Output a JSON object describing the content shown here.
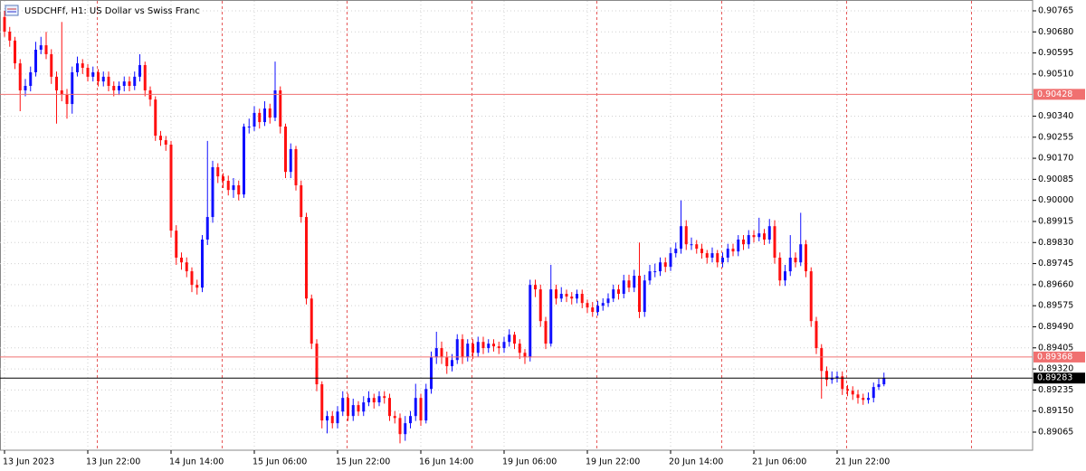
{
  "chart_data": {
    "type": "candlestick",
    "title": "USDCHFf, H1: US Dollar vs Swiss Franc",
    "categories": [
      "13 Jun 2023",
      null,
      null,
      null,
      null,
      null,
      null,
      null,
      null,
      null,
      null,
      null,
      null,
      null,
      null,
      null,
      "13 Jun 22:00",
      null,
      null,
      null,
      null,
      null,
      null,
      null,
      null,
      null,
      null,
      null,
      null,
      null,
      null,
      null,
      "14 Jun 14:00",
      null,
      null,
      null,
      null,
      null,
      null,
      null,
      null,
      null,
      null,
      null,
      null,
      null,
      null,
      null,
      "15 Jun 06:00",
      null,
      null,
      null,
      null,
      null,
      null,
      null,
      null,
      null,
      null,
      null,
      null,
      null,
      null,
      null,
      "15 Jun 22:00",
      null,
      null,
      null,
      null,
      null,
      null,
      null,
      null,
      null,
      null,
      null,
      null,
      null,
      null,
      null,
      "16 Jun 14:00",
      null,
      null,
      null,
      null,
      null,
      null,
      null,
      null,
      null,
      null,
      null,
      null,
      null,
      null,
      null,
      "19 Jun 06:00",
      null,
      null,
      null,
      null,
      null,
      null,
      null,
      null,
      null,
      null,
      null,
      null,
      null,
      null,
      null,
      "19 Jun 22:00",
      null,
      null,
      null,
      null,
      null,
      null,
      null,
      null,
      null,
      null,
      null,
      null,
      null,
      null,
      null,
      "20 Jun 14:00",
      null,
      null,
      null,
      null,
      null,
      null,
      null,
      null,
      null,
      null,
      null,
      null,
      null,
      null,
      null,
      "21 Jun 06:00",
      null,
      null,
      null,
      null,
      null,
      null,
      null,
      null,
      null,
      null,
      null,
      null,
      null,
      null,
      null,
      "21 Jun 22:00",
      null,
      null,
      null,
      null,
      null,
      null,
      null,
      null,
      null
    ],
    "open": [
      0.9074,
      0.90681,
      0.90645,
      0.90553,
      0.90444,
      0.90462,
      0.90517,
      0.90608,
      0.90626,
      0.9059,
      0.90499,
      0.90444,
      0.90426,
      0.90389,
      0.90517,
      0.90553,
      0.90535,
      0.90499,
      0.90517,
      0.9048,
      0.90499,
      0.90462,
      0.90444,
      0.90462,
      0.9048,
      0.90462,
      0.90499,
      0.90546,
      0.90444,
      0.90407,
      0.90261,
      0.90243,
      0.90225,
      0.89878,
      0.89769,
      0.8975,
      0.89714,
      0.89659,
      0.89648,
      0.89842,
      0.89933,
      0.90134,
      0.90097,
      0.90079,
      0.90042,
      0.90061,
      0.90024,
      0.90298,
      0.90298,
      0.90353,
      0.90316,
      0.90371,
      0.90334,
      0.90444,
      0.90298,
      0.90115,
      0.90207,
      0.90061,
      0.89933,
      0.89604,
      0.89422,
      0.89258,
      0.89112,
      0.8913,
      0.89101,
      0.89148,
      0.89203,
      0.8913,
      0.89174,
      0.89148,
      0.89185,
      0.89203,
      0.89185,
      0.8921,
      0.89203,
      0.8913,
      0.89122,
      0.89057,
      0.89101,
      0.8913,
      0.89203,
      0.89112,
      0.89239,
      0.89367,
      0.89404,
      0.89367,
      0.89331,
      0.89356,
      0.8944,
      0.89367,
      0.89422,
      0.89385,
      0.89429,
      0.89404,
      0.89422,
      0.89411,
      0.89404,
      0.89429,
      0.89458,
      0.89422,
      0.89385,
      0.89367,
      0.89659,
      0.89641,
      0.89513,
      0.89422,
      0.89641,
      0.89604,
      0.89623,
      0.89612,
      0.89604,
      0.89623,
      0.89586,
      0.89568,
      0.8955,
      0.89575,
      0.89586,
      0.89604,
      0.89641,
      0.89623,
      0.89677,
      0.89648,
      0.89696,
      0.8955,
      0.89677,
      0.89714,
      0.89714,
      0.8975,
      0.89732,
      0.89787,
      0.89805,
      0.89896,
      0.89823,
      0.89823,
      0.89805,
      0.89787,
      0.89769,
      0.89787,
      0.8975,
      0.89769,
      0.89805,
      0.89794,
      0.89842,
      0.89823,
      0.8986,
      0.89852,
      0.89867,
      0.89842,
      0.89896,
      0.89769,
      0.89677,
      0.89714,
      0.89769,
      0.8975,
      0.89823,
      0.89714,
      0.89513,
      0.89404,
      0.89312,
      0.89276,
      0.89283,
      0.8929,
      0.89239,
      0.89232,
      0.89217,
      0.89203,
      0.89195,
      0.89203,
      0.89247,
      0.89258
    ],
    "high": [
      0.90765,
      0.907,
      0.9066,
      0.9057,
      0.9049,
      0.9054,
      0.9064,
      0.9066,
      0.9068,
      0.9061,
      0.9052,
      0.9072,
      0.9045,
      0.9054,
      0.9058,
      0.9057,
      0.9055,
      0.9054,
      0.9053,
      0.9052,
      0.9052,
      0.9048,
      0.9048,
      0.905,
      0.905,
      0.9052,
      0.9059,
      0.9056,
      0.9046,
      0.9042,
      0.9028,
      0.9026,
      0.9024,
      0.899,
      0.8979,
      0.8977,
      0.8973,
      0.8968,
      0.8986,
      0.9024,
      0.9016,
      0.9015,
      0.9011,
      0.901,
      0.9009,
      0.9008,
      0.9031,
      0.9033,
      0.9038,
      0.9037,
      0.904,
      0.9039,
      0.9056,
      0.9046,
      0.9031,
      0.9023,
      0.9022,
      0.9008,
      0.8995,
      0.8962,
      0.8944,
      0.8927,
      0.8915,
      0.8915,
      0.8917,
      0.8923,
      0.8922,
      0.892,
      0.8919,
      0.8921,
      0.8923,
      0.8922,
      0.8923,
      0.8923,
      0.8922,
      0.8915,
      0.8914,
      0.8913,
      0.8915,
      0.8926,
      0.8922,
      0.8926,
      0.8939,
      0.8947,
      0.8943,
      0.8939,
      0.8938,
      0.8946,
      0.8946,
      0.8944,
      0.8944,
      0.8945,
      0.8945,
      0.8944,
      0.8944,
      0.8943,
      0.8945,
      0.8948,
      0.8947,
      0.8944,
      0.894,
      0.8968,
      0.8968,
      0.8966,
      0.8953,
      0.8974,
      0.8966,
      0.8965,
      0.8964,
      0.8963,
      0.8964,
      0.8964,
      0.896,
      0.8959,
      0.89595,
      0.89605,
      0.89625,
      0.8966,
      0.8966,
      0.897,
      0.897,
      0.8972,
      0.8983,
      0.897,
      0.8974,
      0.89745,
      0.8977,
      0.8977,
      0.8981,
      0.8983,
      0.9,
      0.8992,
      0.8985,
      0.8984,
      0.89825,
      0.898,
      0.8981,
      0.898,
      0.8979,
      0.89825,
      0.89825,
      0.8986,
      0.8986,
      0.8988,
      0.8988,
      0.8993,
      0.89885,
      0.89925,
      0.8992,
      0.8979,
      0.8974,
      0.8986,
      0.8979,
      0.8995,
      0.8984,
      0.8973,
      0.8953,
      0.8942,
      0.8933,
      0.8931,
      0.8931,
      0.8931,
      0.89255,
      0.8925,
      0.89235,
      0.8922,
      0.89225,
      0.89265,
      0.8928,
      0.89305
    ],
    "low": [
      0.9066,
      0.9062,
      0.9053,
      0.9036,
      0.9042,
      0.9044,
      0.905,
      0.9059,
      0.9057,
      0.9047,
      0.9031,
      0.904,
      0.9033,
      0.9035,
      0.905,
      0.9051,
      0.9048,
      0.9048,
      0.9046,
      0.9046,
      0.9044,
      0.9042,
      0.90425,
      0.9044,
      0.9044,
      0.90445,
      0.9048,
      0.9042,
      0.9038,
      0.9024,
      0.9022,
      0.902,
      0.8985,
      0.8974,
      0.8972,
      0.8969,
      0.8963,
      0.8962,
      0.8963,
      0.8982,
      0.8991,
      0.9007,
      0.9005,
      0.9002,
      0.9001,
      0.9,
      0.9001,
      0.9027,
      0.9028,
      0.9029,
      0.903,
      0.9031,
      0.9032,
      0.9027,
      0.9009,
      0.9009,
      0.9004,
      0.8991,
      0.8958,
      0.894,
      0.8923,
      0.8908,
      0.8906,
      0.8908,
      0.8908,
      0.8913,
      0.8911,
      0.8911,
      0.8913,
      0.8913,
      0.8917,
      0.8916,
      0.8917,
      0.8918,
      0.8911,
      0.891,
      0.8902,
      0.8903,
      0.8908,
      0.8911,
      0.8909,
      0.891,
      0.8922,
      0.8934,
      0.8934,
      0.893,
      0.8931,
      0.8934,
      0.8934,
      0.8935,
      0.8936,
      0.8937,
      0.8938,
      0.89385,
      0.8939,
      0.8938,
      0.89385,
      0.8941,
      0.894,
      0.8936,
      0.8934,
      0.8935,
      0.8961,
      0.8949,
      0.894,
      0.8941,
      0.8958,
      0.8959,
      0.8959,
      0.8958,
      0.89585,
      0.89565,
      0.89545,
      0.8953,
      0.89535,
      0.89555,
      0.8957,
      0.8959,
      0.896,
      0.89605,
      0.8963,
      0.8963,
      0.89525,
      0.8953,
      0.8966,
      0.8969,
      0.89695,
      0.8971,
      0.89715,
      0.8977,
      0.89785,
      0.898,
      0.898,
      0.89785,
      0.89765,
      0.89745,
      0.8975,
      0.8973,
      0.8973,
      0.8975,
      0.89775,
      0.89775,
      0.898,
      0.89805,
      0.8983,
      0.89835,
      0.8982,
      0.89825,
      0.89745,
      0.89655,
      0.89655,
      0.89695,
      0.8973,
      0.89735,
      0.8969,
      0.8949,
      0.8938,
      0.892,
      0.8925,
      0.8926,
      0.89265,
      0.89215,
      0.8921,
      0.89195,
      0.8918,
      0.89175,
      0.8918,
      0.89185,
      0.89235,
      0.8925
    ],
    "close": [
      0.90681,
      0.90645,
      0.90553,
      0.90444,
      0.90462,
      0.90517,
      0.90608,
      0.90626,
      0.9059,
      0.90499,
      0.90444,
      0.90426,
      0.90389,
      0.90517,
      0.90553,
      0.90535,
      0.90499,
      0.90517,
      0.9048,
      0.90499,
      0.90462,
      0.90444,
      0.90462,
      0.9048,
      0.90462,
      0.90499,
      0.90546,
      0.90444,
      0.90407,
      0.90261,
      0.90243,
      0.90225,
      0.89878,
      0.89769,
      0.8975,
      0.89714,
      0.89659,
      0.89648,
      0.89842,
      0.89933,
      0.90134,
      0.90097,
      0.90079,
      0.90042,
      0.90061,
      0.90024,
      0.90298,
      0.90298,
      0.90353,
      0.90316,
      0.90371,
      0.90334,
      0.90444,
      0.90298,
      0.90115,
      0.90207,
      0.90061,
      0.89933,
      0.89604,
      0.89422,
      0.89258,
      0.89112,
      0.8913,
      0.89101,
      0.89148,
      0.89203,
      0.8913,
      0.89174,
      0.89148,
      0.89185,
      0.89203,
      0.89185,
      0.8921,
      0.89203,
      0.8913,
      0.89122,
      0.89057,
      0.89101,
      0.8913,
      0.89203,
      0.89112,
      0.89239,
      0.89367,
      0.89404,
      0.89367,
      0.89331,
      0.89356,
      0.8944,
      0.89367,
      0.89422,
      0.89385,
      0.89429,
      0.89404,
      0.89422,
      0.89411,
      0.89404,
      0.89429,
      0.89458,
      0.89422,
      0.89385,
      0.89367,
      0.89659,
      0.89641,
      0.89513,
      0.89422,
      0.89641,
      0.89604,
      0.89623,
      0.89612,
      0.89604,
      0.89623,
      0.89586,
      0.89568,
      0.8955,
      0.89575,
      0.89586,
      0.89604,
      0.89641,
      0.89623,
      0.89677,
      0.89648,
      0.89696,
      0.8955,
      0.89677,
      0.89714,
      0.89714,
      0.8975,
      0.89732,
      0.89787,
      0.89805,
      0.89896,
      0.89823,
      0.89823,
      0.89805,
      0.89787,
      0.89769,
      0.89787,
      0.8975,
      0.89769,
      0.89805,
      0.89794,
      0.89842,
      0.89823,
      0.8986,
      0.89852,
      0.89867,
      0.89842,
      0.89896,
      0.89769,
      0.89677,
      0.89714,
      0.89769,
      0.8975,
      0.89823,
      0.89714,
      0.89513,
      0.89404,
      0.89312,
      0.89276,
      0.89283,
      0.8929,
      0.89239,
      0.89232,
      0.89217,
      0.89203,
      0.89195,
      0.89203,
      0.89247,
      0.89258,
      0.89283
    ],
    "up_color": "#1010ff",
    "down_color": "#ff1010",
    "ylim": [
      0.88992,
      0.90805
    ],
    "yticks": [
      0.90765,
      {
        "value": 0.9068,
        "label": "0.90680"
      },
      0.90595,
      {
        "value": 0.9051,
        "label": "0.90510"
      },
      {
        "value": 0.9034,
        "label": "0.90340"
      },
      0.90255,
      {
        "value": 0.9017,
        "label": "0.90170"
      },
      0.90085,
      {
        "value": 0.9,
        "label": "0.90000"
      },
      0.89915,
      {
        "value": 0.8983,
        "label": "0.89830"
      },
      0.89745,
      {
        "value": 0.8966,
        "label": "0.89660"
      },
      0.89575,
      {
        "value": 0.8949,
        "label": "0.89490"
      },
      0.89405,
      {
        "value": 0.8932,
        "label": "0.89320"
      },
      0.89235,
      {
        "value": 0.8915,
        "label": "0.89150"
      },
      0.89065
    ],
    "grid": true,
    "price_lines": [
      {
        "value": 0.90428,
        "color": "#f07070"
      },
      {
        "value": 0.89368,
        "color": "#f07070"
      },
      {
        "value": 0.89283,
        "color": "#000000"
      }
    ]
  }
}
